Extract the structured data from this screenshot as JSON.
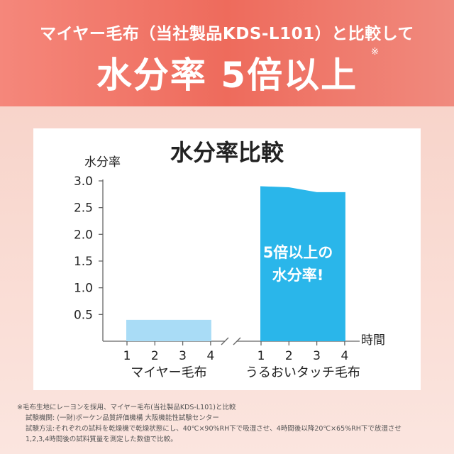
{
  "headline": {
    "sub": "マイヤー毛布（当社製品KDS-L101）と比較して",
    "main": "水分率 5倍以上",
    "note_mark": "※"
  },
  "chart_data": {
    "type": "bar",
    "title": "水分率比較",
    "ylabel": "水分率",
    "xlabel": "時間",
    "ylim": [
      0,
      3.0
    ],
    "yticks": [
      0.5,
      1.0,
      1.5,
      2.0,
      2.5,
      3.0
    ],
    "ytick_labels": [
      "0.5",
      "1.0",
      "1.5",
      "2.0",
      "2.5",
      "3.0"
    ],
    "x_ticks": [
      "1",
      "2",
      "3",
      "4"
    ],
    "panels": [
      {
        "name": "マイヤー毛布",
        "x": [
          1,
          2,
          3,
          4
        ],
        "values": [
          0.4,
          0.4,
          0.4,
          0.4
        ],
        "color": "#a9dcf6"
      },
      {
        "name": "うるおいタッチ毛布",
        "x": [
          1,
          2,
          3,
          4
        ],
        "values": [
          2.9,
          2.88,
          2.79,
          2.79
        ],
        "color": "#2ab6ea"
      }
    ],
    "annotation": {
      "line1": "5倍以上の",
      "line2": "水分率!"
    },
    "grid": false
  },
  "footnotes": [
    "※毛布生地にレーヨンを採用、マイヤー毛布(当社製品KDS-L101)と比較",
    "試験機関: (一財)ボーケン品質評価機構 大阪機能性試験センター",
    "試験方法:それぞれの試料を乾燥機で乾燥状態にし、40℃×90%RH下で吸湿させ、4時間後以降20℃×65%RH下で放湿させ",
    "1,2,3,4時間後の試料質量を測定した数値で比較。"
  ]
}
